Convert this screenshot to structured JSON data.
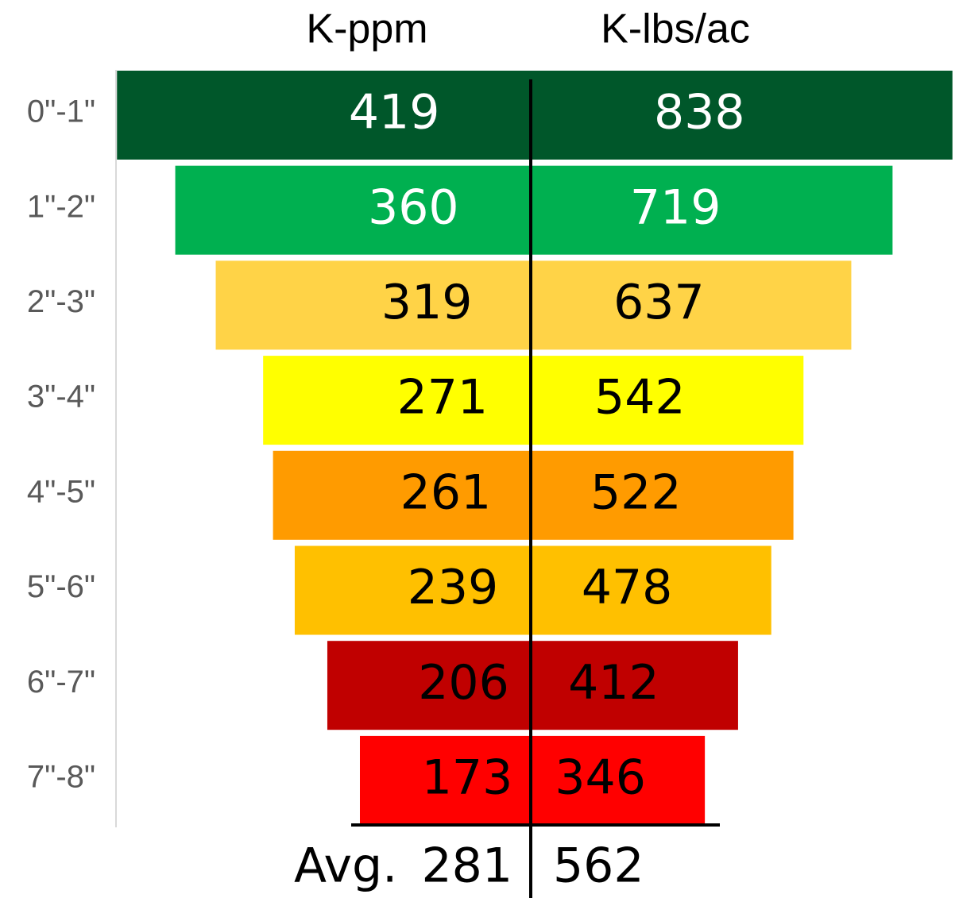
{
  "chart_data": {
    "type": "butterfly",
    "categories": [
      "0\"-1\"",
      "1\"-2\"",
      "2\"-3\"",
      "3\"-4\"",
      "4\"-5\"",
      "5\"-6\"",
      "6\"-7\"",
      "7\"-8\""
    ],
    "series": [
      {
        "name": "K-ppm",
        "values": [
          419,
          360,
          319,
          271,
          261,
          239,
          206,
          173
        ]
      },
      {
        "name": "K-lbs/ac",
        "values": [
          838,
          719,
          637,
          542,
          522,
          478,
          412,
          346
        ]
      }
    ],
    "colors": [
      "#00572a",
      "#00b050",
      "#ffd347",
      "#ffff00",
      "#ff9b00",
      "#ffc000",
      "#c00000",
      "#ff0000"
    ],
    "label_colors": [
      "#ffffff",
      "#ffffff",
      "#000000",
      "#000000",
      "#000000",
      "#000000",
      "#000000",
      "#000000"
    ],
    "xlim": [
      0,
      420
    ],
    "x2lim": [
      0,
      840
    ],
    "average": {
      "label": "Avg.",
      "values": [
        281,
        562
      ]
    }
  }
}
